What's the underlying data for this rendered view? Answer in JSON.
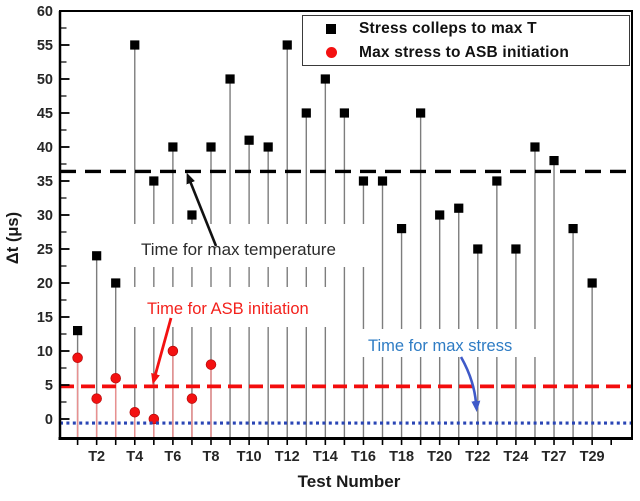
{
  "figure": {
    "y_axis_title": "Δt (μs)",
    "x_axis_title": "Test Number"
  },
  "legend": {
    "items": [
      {
        "marker": "black-square",
        "label": "Stress colleps to max T"
      },
      {
        "marker": "red-circle",
        "label": "Max stress to ASB initiation"
      }
    ]
  },
  "annotations": {
    "max_temperature": {
      "label": "Time for max temperature",
      "color": "#2b2b2b"
    },
    "asb_initiation": {
      "label": "Time for ASB initiation",
      "color": "#f3211c"
    },
    "max_stress": {
      "label": "Time for max stress",
      "color": "#2e7cc4"
    }
  },
  "colors": {
    "black_series": "#000000",
    "red_series": "#f31111",
    "gray_stem": "#7d7d7d",
    "red_stem": "#e89090",
    "ref_black": "#000000",
    "ref_red": "#f30d0d",
    "ref_blue": "#2945b5",
    "blue_arrow": "#3f5ac8"
  },
  "chart_data": {
    "type": "scatter",
    "title": "",
    "xlabel": "Test Number",
    "ylabel": "Δt (μs)",
    "categories": [
      "T1",
      "T2",
      "T3",
      "T4",
      "T5",
      "T6",
      "T7",
      "T8",
      "T9",
      "T10",
      "T11",
      "T12",
      "T13",
      "T14",
      "T15",
      "T16",
      "T17",
      "T18",
      "T19",
      "T20",
      "T21",
      "T22",
      "T23",
      "T24",
      "T26",
      "T27",
      "T28",
      "T29"
    ],
    "x_tick_labels": [
      {
        "pos": 2,
        "label": "T2"
      },
      {
        "pos": 4,
        "label": "T4"
      },
      {
        "pos": 6,
        "label": "T6"
      },
      {
        "pos": 8,
        "label": "T8"
      },
      {
        "pos": 10,
        "label": "T10"
      },
      {
        "pos": 12,
        "label": "T12"
      },
      {
        "pos": 14,
        "label": "T14"
      },
      {
        "pos": 16,
        "label": "T16"
      },
      {
        "pos": 18,
        "label": "T18"
      },
      {
        "pos": 20,
        "label": "T20"
      },
      {
        "pos": 22,
        "label": "T22"
      },
      {
        "pos": 24,
        "label": "T24"
      },
      {
        "pos": 26,
        "label": "T27"
      },
      {
        "pos": 28,
        "label": "T29"
      }
    ],
    "y_ticks": [
      0,
      5,
      10,
      15,
      20,
      25,
      30,
      35,
      40,
      45,
      50,
      55,
      60
    ],
    "y_minor_step": 2.5,
    "ylim": [
      -2.9,
      60
    ],
    "grid": false,
    "legend_position": "top-right-inside",
    "series": [
      {
        "name": "Stress colleps to max T",
        "marker": "square",
        "color": "#000000",
        "values": [
          13,
          24,
          20,
          55,
          35,
          40,
          30,
          40,
          50,
          41,
          40,
          55,
          45,
          50,
          45,
          35,
          35,
          28,
          45,
          30,
          31,
          25,
          35,
          25,
          40,
          38,
          28,
          20
        ]
      },
      {
        "name": "Max stress to ASB initiation",
        "marker": "circle",
        "color": "#f31111",
        "values": [
          9,
          3,
          6,
          1,
          0,
          10,
          3,
          8,
          null,
          null,
          null,
          null,
          null,
          null,
          null,
          null,
          null,
          null,
          null,
          null,
          null,
          null,
          null,
          null,
          null,
          null,
          null,
          null
        ]
      }
    ],
    "reference_lines": [
      {
        "label": "Time for max temperature",
        "value": 36.4,
        "style": "dashed",
        "color": "#000000"
      },
      {
        "label": "Time for ASB initiation",
        "value": 4.8,
        "style": "dashed",
        "color": "#f30d0d"
      },
      {
        "label": "Time for max stress",
        "value": -0.6,
        "style": "dotted",
        "color": "#2945b5"
      }
    ]
  }
}
